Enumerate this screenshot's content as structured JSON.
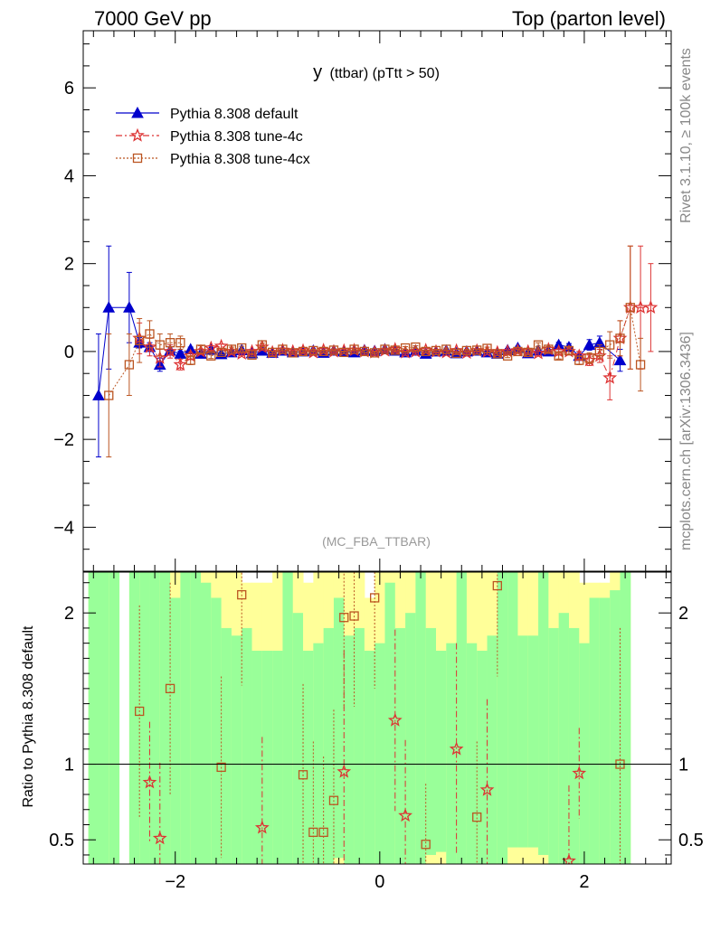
{
  "header": {
    "left": "7000 GeV pp",
    "right": "Top (parton level)"
  },
  "side_labels": {
    "rivet": "Rivet 3.1.10, ≥ 100k events",
    "mcplots": "mcplots.cern.ch [arXiv:1306.3436]"
  },
  "colors": {
    "default": "#0000cc",
    "tune4c": "#dd3333",
    "tune4cx": "#bb5522",
    "band_green": "#99ff99",
    "band_yellow": "#ffff99",
    "axis": "#000000",
    "watermark": "#999999"
  },
  "chart_data": [
    {
      "type": "line",
      "title": "y (ttbar) (pTtt > 50)",
      "title_main": "y",
      "title_rest": "(ttbar) (pTtt > 50)",
      "watermark": "(MC_FBA_TTBAR)",
      "xlabel": "",
      "ylabel": "",
      "xlim": [
        -2.9,
        2.85
      ],
      "ylim": [
        -5.0,
        7.3
      ],
      "yticks": [
        -4,
        -2,
        0,
        2,
        4,
        6
      ],
      "ytick_labels": [
        "−4",
        "−2",
        "0",
        "2",
        "4",
        "6"
      ],
      "legend_position": "top-left",
      "series": [
        {
          "name": "Pythia 8.308 default",
          "marker": "triangle",
          "x": [
            -2.75,
            -2.65,
            -2.45,
            -2.35,
            -2.25,
            -2.15,
            -2.05,
            -1.95,
            -1.85,
            -1.75,
            -1.65,
            -1.55,
            -1.45,
            -1.35,
            -1.25,
            -1.15,
            -1.05,
            -0.95,
            -0.85,
            -0.75,
            -0.65,
            -0.55,
            -0.45,
            -0.35,
            -0.25,
            -0.15,
            -0.05,
            0.05,
            0.15,
            0.25,
            0.35,
            0.45,
            0.55,
            0.65,
            0.75,
            0.85,
            0.95,
            1.05,
            1.15,
            1.25,
            1.35,
            1.45,
            1.55,
            1.65,
            1.75,
            1.85,
            1.95,
            2.05,
            2.15,
            2.35
          ],
          "y": [
            -1.0,
            1.0,
            1.0,
            0.2,
            0.1,
            -0.3,
            0.02,
            -0.05,
            0.05,
            -0.05,
            0.04,
            -0.06,
            -0.02,
            0.03,
            -0.04,
            0.02,
            -0.03,
            0.02,
            -0.02,
            0.0,
            0.02,
            -0.03,
            0.02,
            0.0,
            -0.02,
            0.03,
            0.01,
            0.05,
            0.02,
            -0.02,
            0.02,
            -0.05,
            0.0,
            0.02,
            -0.04,
            0.0,
            0.02,
            -0.02,
            -0.05,
            0.03,
            0.08,
            -0.04,
            0.02,
            0.0,
            0.15,
            0.1,
            -0.1,
            0.15,
            0.2,
            -0.2
          ],
          "err": [
            1.4,
            1.4,
            0.8,
            0.12,
            0.1,
            0.15,
            0.08,
            0.06,
            0.05,
            0.04,
            0.04,
            0.04,
            0.04,
            0.03,
            0.03,
            0.03,
            0.03,
            0.03,
            0.03,
            0.03,
            0.03,
            0.03,
            0.03,
            0.03,
            0.03,
            0.03,
            0.03,
            0.03,
            0.03,
            0.03,
            0.03,
            0.03,
            0.03,
            0.03,
            0.03,
            0.03,
            0.03,
            0.03,
            0.03,
            0.04,
            0.04,
            0.04,
            0.04,
            0.05,
            0.06,
            0.08,
            0.1,
            0.12,
            0.15,
            0.25
          ]
        },
        {
          "name": "Pythia 8.308 tune-4c",
          "marker": "star",
          "x": [
            -2.35,
            -2.25,
            -2.15,
            -2.05,
            -1.95,
            -1.85,
            -1.75,
            -1.65,
            -1.55,
            -1.45,
            -1.35,
            -1.25,
            -1.15,
            -1.05,
            -0.95,
            -0.85,
            -0.75,
            -0.65,
            -0.55,
            -0.45,
            -0.35,
            -0.25,
            -0.15,
            -0.05,
            0.05,
            0.15,
            0.25,
            0.35,
            0.45,
            0.55,
            0.65,
            0.75,
            0.85,
            0.95,
            1.05,
            1.15,
            1.25,
            1.35,
            1.45,
            1.55,
            1.65,
            1.75,
            1.85,
            1.95,
            2.05,
            2.15,
            2.25,
            2.35,
            2.45,
            2.55,
            2.65
          ],
          "y": [
            0.3,
            0.1,
            -0.15,
            0.0,
            -0.3,
            -0.1,
            0.0,
            0.08,
            0.12,
            0.0,
            -0.05,
            0.0,
            0.1,
            -0.02,
            0.03,
            0.0,
            0.02,
            -0.02,
            0.03,
            0.0,
            0.02,
            0.03,
            0.0,
            -0.02,
            0.02,
            0.05,
            -0.02,
            0.0,
            0.03,
            0.0,
            -0.02,
            0.02,
            -0.03,
            0.02,
            0.0,
            -0.02,
            0.0,
            0.02,
            0.0,
            -0.04,
            0.05,
            0.0,
            0.0,
            -0.1,
            -0.2,
            -0.1,
            -0.6,
            0.3,
            1.0,
            1.0,
            1.0
          ],
          "err": [
            0.35,
            0.2,
            0.2,
            0.15,
            0.12,
            0.08,
            0.06,
            0.05,
            0.05,
            0.04,
            0.04,
            0.04,
            0.03,
            0.03,
            0.03,
            0.03,
            0.03,
            0.03,
            0.03,
            0.03,
            0.03,
            0.03,
            0.03,
            0.03,
            0.03,
            0.03,
            0.03,
            0.03,
            0.03,
            0.03,
            0.03,
            0.03,
            0.03,
            0.03,
            0.03,
            0.03,
            0.04,
            0.04,
            0.04,
            0.05,
            0.05,
            0.06,
            0.08,
            0.1,
            0.12,
            0.15,
            0.5,
            0.4,
            1.4,
            1.4,
            1.0
          ]
        },
        {
          "name": "Pythia 8.308 tune-4cx",
          "marker": "square",
          "x": [
            -2.65,
            -2.45,
            -2.35,
            -2.25,
            -2.15,
            -2.05,
            -1.95,
            -1.85,
            -1.75,
            -1.65,
            -1.55,
            -1.45,
            -1.35,
            -1.25,
            -1.15,
            -1.05,
            -0.95,
            -0.85,
            -0.75,
            -0.65,
            -0.55,
            -0.45,
            -0.35,
            -0.25,
            -0.15,
            -0.05,
            0.05,
            0.15,
            0.25,
            0.35,
            0.45,
            0.55,
            0.65,
            0.75,
            0.85,
            0.95,
            1.05,
            1.15,
            1.25,
            1.35,
            1.45,
            1.55,
            1.65,
            1.75,
            1.85,
            1.95,
            2.05,
            2.15,
            2.25,
            2.35,
            2.45,
            2.55
          ],
          "y": [
            -1.0,
            -0.3,
            0.25,
            0.4,
            0.15,
            0.2,
            0.2,
            -0.2,
            0.05,
            -0.1,
            -0.02,
            0.05,
            0.08,
            -0.08,
            0.15,
            -0.02,
            0.05,
            -0.03,
            0.0,
            0.02,
            0.0,
            0.03,
            -0.02,
            0.05,
            0.0,
            -0.03,
            0.05,
            0.03,
            0.08,
            0.1,
            0.0,
            0.02,
            0.05,
            -0.04,
            0.02,
            0.03,
            0.07,
            -0.05,
            -0.1,
            0.0,
            -0.02,
            0.15,
            0.05,
            -0.1,
            0.02,
            -0.2,
            -0.15,
            0.0,
            0.15,
            0.3,
            1.0,
            -0.3
          ],
          "err": [
            1.4,
            0.7,
            0.5,
            0.3,
            0.25,
            0.2,
            0.15,
            0.1,
            0.08,
            0.06,
            0.05,
            0.05,
            0.04,
            0.04,
            0.04,
            0.03,
            0.03,
            0.03,
            0.03,
            0.03,
            0.03,
            0.03,
            0.03,
            0.03,
            0.03,
            0.03,
            0.03,
            0.03,
            0.03,
            0.03,
            0.03,
            0.03,
            0.03,
            0.03,
            0.03,
            0.03,
            0.03,
            0.04,
            0.04,
            0.04,
            0.05,
            0.05,
            0.06,
            0.07,
            0.08,
            0.1,
            0.12,
            0.15,
            0.3,
            0.4,
            1.4,
            0.6
          ]
        }
      ]
    },
    {
      "type": "line",
      "title": "",
      "xlabel": "",
      "ylabel": "Ratio to Pythia 8.308 default",
      "xlim": [
        -2.9,
        2.85
      ],
      "ylim": [
        0.34,
        2.27
      ],
      "yticks": [
        0.5,
        1,
        2
      ],
      "ytick_labels": [
        "0.5",
        "1",
        "2"
      ],
      "xticks": [
        -2,
        0,
        2
      ],
      "xtick_labels": [
        "−2",
        "0",
        "2"
      ],
      "reference_line": 1,
      "band": {
        "x_edges": [
          -2.85,
          -2.65,
          -2.55,
          -2.45,
          -2.35,
          -2.25,
          -2.15,
          -2.05,
          -1.95,
          -1.85,
          -1.75,
          -1.65,
          -1.55,
          -1.45,
          -1.35,
          -1.25,
          -1.15,
          -1.05,
          -0.95,
          -0.85,
          -0.75,
          -0.65,
          -0.55,
          -0.45,
          -0.35,
          -0.25,
          -0.15,
          -0.05,
          0.05,
          0.15,
          0.25,
          0.35,
          0.45,
          0.55,
          0.65,
          0.75,
          0.85,
          0.95,
          1.05,
          1.15,
          1.25,
          1.35,
          1.45,
          1.55,
          1.65,
          1.75,
          1.85,
          1.95,
          2.05,
          2.15,
          2.25,
          2.35,
          2.45
        ],
        "green_hi": [
          2.27,
          2.27,
          null,
          2.27,
          2.27,
          2.27,
          2.27,
          2.1,
          2.27,
          2.27,
          2.2,
          2.1,
          1.9,
          1.85,
          1.9,
          1.75,
          1.75,
          1.75,
          2.27,
          2.0,
          1.75,
          1.8,
          1.9,
          2.1,
          1.85,
          1.9,
          1.75,
          1.8,
          2.2,
          1.9,
          2.0,
          2.27,
          1.9,
          1.75,
          1.8,
          2.27,
          1.8,
          1.75,
          1.85,
          2.27,
          2.27,
          1.85,
          1.85,
          2.27,
          1.9,
          2.0,
          1.9,
          1.8,
          2.1,
          2.1,
          2.15,
          2.27
        ],
        "green_lo": [
          0.34,
          0.34,
          null,
          0.34,
          0.34,
          0.34,
          0.34,
          0.34,
          0.34,
          0.34,
          0.34,
          0.34,
          0.34,
          0.34,
          0.34,
          0.34,
          0.34,
          0.34,
          0.34,
          0.34,
          0.34,
          0.34,
          0.34,
          0.38,
          0.34,
          0.34,
          0.34,
          0.34,
          0.34,
          0.34,
          0.34,
          0.34,
          0.4,
          0.42,
          0.34,
          0.34,
          0.34,
          0.34,
          0.34,
          0.34,
          0.45,
          0.45,
          0.45,
          0.4,
          0.34,
          0.34,
          0.34,
          0.34,
          0.34,
          0.34,
          0.34,
          0.34
        ],
        "yellow_hi": [
          2.27,
          2.27,
          null,
          2.27,
          2.27,
          2.27,
          2.27,
          2.27,
          2.27,
          2.27,
          2.27,
          2.27,
          2.27,
          2.27,
          2.2,
          2.2,
          2.2,
          2.27,
          2.27,
          2.27,
          2.2,
          2.27,
          2.27,
          2.27,
          2.27,
          2.27,
          2.1,
          2.27,
          2.27,
          2.27,
          2.27,
          2.27,
          2.27,
          2.27,
          2.27,
          2.27,
          2.27,
          2.27,
          2.27,
          2.27,
          2.27,
          2.27,
          2.27,
          2.27,
          2.27,
          2.27,
          2.27,
          2.2,
          2.2,
          2.2,
          2.27,
          2.27
        ],
        "yellow_lo": [
          0.34,
          0.34,
          null,
          0.34,
          0.34,
          0.34,
          0.34,
          0.34,
          0.34,
          0.34,
          0.34,
          0.34,
          0.34,
          0.34,
          0.34,
          0.34,
          0.34,
          0.34,
          0.34,
          0.34,
          0.34,
          0.34,
          0.34,
          0.34,
          0.34,
          0.34,
          0.34,
          0.34,
          0.34,
          0.34,
          0.34,
          0.34,
          0.34,
          0.34,
          0.34,
          0.34,
          0.34,
          0.34,
          0.34,
          0.34,
          0.34,
          0.34,
          0.34,
          0.34,
          0.34,
          0.34,
          0.34,
          0.34,
          0.34,
          0.34,
          0.34,
          0.34
        ]
      },
      "series": [
        {
          "name": "Pythia 8.308 tune-4c",
          "marker": "star",
          "x": [
            -2.25,
            -2.15,
            0.15,
            0.25,
            -0.35,
            0.75,
            1.05,
            1.95,
            1.85,
            -1.15
          ],
          "y": [
            0.88,
            0.51,
            1.29,
            0.66,
            0.95,
            1.1,
            0.83,
            0.94,
            0.36,
            0.58
          ],
          "err": [
            0.4,
            0.5,
            0.6,
            0.5,
            0.8,
            0.7,
            0.6,
            0.3,
            0.5,
            0.6
          ]
        },
        {
          "name": "Pythia 8.308 tune-4cx",
          "marker": "square",
          "x": [
            -2.35,
            -2.05,
            -1.55,
            -1.35,
            -0.75,
            -0.65,
            -0.55,
            -0.45,
            -0.35,
            -0.25,
            -0.05,
            0.45,
            0.95,
            1.15,
            2.35
          ],
          "y": [
            1.35,
            1.5,
            0.98,
            2.12,
            0.93,
            0.55,
            0.55,
            0.76,
            1.97,
            1.98,
            2.1,
            0.47,
            0.65,
            2.18,
            1.0
          ],
          "err": [
            0.7,
            0.7,
            0.6,
            0.6,
            0.6,
            0.6,
            0.5,
            0.6,
            0.6,
            0.6,
            0.6,
            0.4,
            0.5,
            0.6,
            0.9
          ]
        }
      ]
    }
  ]
}
